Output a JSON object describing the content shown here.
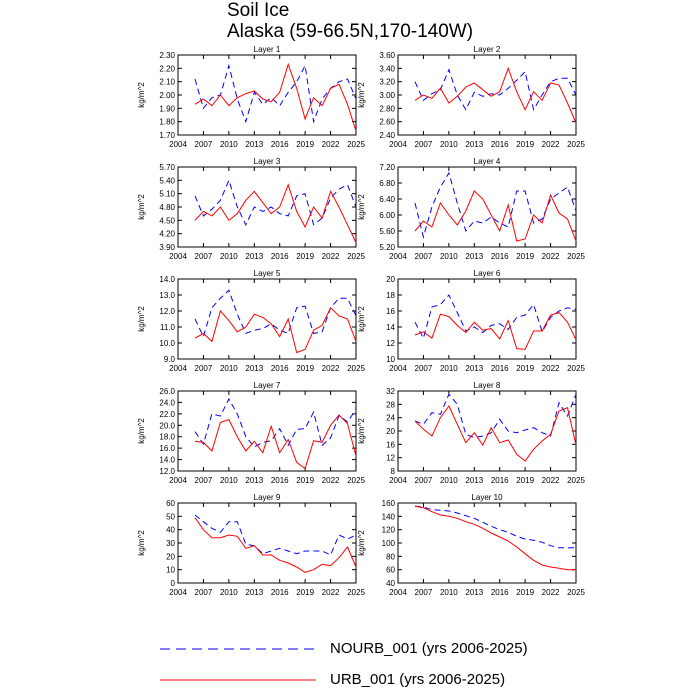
{
  "title_line1": "Soil Ice",
  "title_line2": "Alaska (59-66.5N,170-140W)",
  "ylabel": "kg/m^2",
  "colors": {
    "nourb": "#0000ff",
    "urb": "#ff0000"
  },
  "legend": {
    "nourb": "NOURB_001 (yrs 2006-2025)",
    "urb": "URB_001 (yrs 2006-2025)"
  },
  "chart_data": [
    {
      "type": "line",
      "title": "Layer 1",
      "xlim": [
        2004,
        2025
      ],
      "xticks": [
        2004,
        2007,
        2010,
        2013,
        2016,
        2019,
        2022,
        2025
      ],
      "xtick_labels": [
        "2004",
        "2007",
        "2010",
        "2013",
        "2016",
        "2019",
        "2022",
        "2025"
      ],
      "ylim": [
        1.7,
        2.3
      ],
      "yticks": [
        1.7,
        1.8,
        1.9,
        2.0,
        2.1,
        2.2,
        2.3
      ],
      "ytick_labels": [
        "1.70",
        "1.80",
        "1.90",
        "2.00",
        "2.10",
        "2.20",
        "2.30"
      ],
      "x": [
        2006,
        2007,
        2008,
        2009,
        2010,
        2011,
        2012,
        2013,
        2014,
        2015,
        2016,
        2017,
        2018,
        2019,
        2020,
        2021,
        2022,
        2023,
        2024,
        2025
      ],
      "series": [
        {
          "name": "NOURB_001",
          "values": [
            2.12,
            1.9,
            1.98,
            2.0,
            2.22,
            1.97,
            1.8,
            2.02,
            1.93,
            1.98,
            1.92,
            2.02,
            2.1,
            2.22,
            1.8,
            1.97,
            2.05,
            2.1,
            2.12,
            1.97
          ]
        },
        {
          "name": "URB_001",
          "values": [
            1.93,
            1.97,
            1.92,
            2.0,
            1.92,
            1.98,
            2.01,
            2.03,
            1.97,
            1.95,
            2.02,
            2.23,
            2.05,
            1.82,
            1.98,
            1.92,
            2.05,
            2.08,
            1.93,
            1.73
          ]
        }
      ]
    },
    {
      "type": "line",
      "title": "Layer 2",
      "xlim": [
        2004,
        2025
      ],
      "xticks": [
        2004,
        2007,
        2010,
        2013,
        2016,
        2019,
        2022,
        2025
      ],
      "xtick_labels": [
        "2004",
        "2007",
        "2010",
        "2013",
        "2016",
        "2019",
        "2022",
        "2025"
      ],
      "ylim": [
        2.4,
        3.6
      ],
      "yticks": [
        2.4,
        2.6,
        2.8,
        3.0,
        3.2,
        3.4,
        3.6
      ],
      "ytick_labels": [
        "2.40",
        "2.60",
        "2.80",
        "3.00",
        "3.20",
        "3.40",
        "3.60"
      ],
      "x": [
        2006,
        2007,
        2008,
        2009,
        2010,
        2011,
        2012,
        2013,
        2014,
        2015,
        2016,
        2017,
        2018,
        2019,
        2020,
        2021,
        2022,
        2023,
        2024,
        2025
      ],
      "series": [
        {
          "name": "NOURB_001",
          "values": [
            3.2,
            2.92,
            3.02,
            3.08,
            3.38,
            3.0,
            2.78,
            3.04,
            2.98,
            3.02,
            3.0,
            3.1,
            3.22,
            3.35,
            2.78,
            3.0,
            3.2,
            3.25,
            3.25,
            3.0
          ]
        },
        {
          "name": "URB_001",
          "values": [
            2.92,
            3.0,
            2.95,
            3.1,
            2.88,
            2.98,
            3.12,
            3.18,
            3.08,
            2.98,
            3.05,
            3.4,
            3.05,
            2.78,
            3.05,
            2.92,
            3.18,
            3.15,
            2.88,
            2.58
          ]
        }
      ]
    },
    {
      "type": "line",
      "title": "Layer 3",
      "xlim": [
        2004,
        2025
      ],
      "xticks": [
        2004,
        2007,
        2010,
        2013,
        2016,
        2019,
        2022,
        2025
      ],
      "xtick_labels": [
        "2004",
        "2007",
        "2010",
        "2013",
        "2016",
        "2019",
        "2022",
        "2025"
      ],
      "ylim": [
        3.9,
        5.7
      ],
      "yticks": [
        3.9,
        4.2,
        4.5,
        4.8,
        5.1,
        5.4,
        5.7
      ],
      "ytick_labels": [
        "3.90",
        "4.20",
        "4.50",
        "4.80",
        "5.10",
        "5.40",
        "5.70"
      ],
      "x": [
        2006,
        2007,
        2008,
        2009,
        2010,
        2011,
        2012,
        2013,
        2014,
        2015,
        2016,
        2017,
        2018,
        2019,
        2020,
        2021,
        2022,
        2023,
        2024,
        2025
      ],
      "series": [
        {
          "name": "NOURB_001",
          "values": [
            5.05,
            4.6,
            4.75,
            4.95,
            5.4,
            4.8,
            4.4,
            4.8,
            4.7,
            4.8,
            4.65,
            4.6,
            5.05,
            5.1,
            4.4,
            4.55,
            5.0,
            5.2,
            5.3,
            4.8
          ]
        },
        {
          "name": "URB_001",
          "values": [
            4.5,
            4.7,
            4.6,
            4.8,
            4.5,
            4.65,
            4.95,
            5.15,
            4.9,
            4.65,
            4.8,
            5.3,
            4.7,
            4.35,
            4.8,
            4.55,
            5.15,
            4.8,
            4.4,
            4.0
          ]
        }
      ]
    },
    {
      "type": "line",
      "title": "Layer 4",
      "xlim": [
        2004,
        2025
      ],
      "xticks": [
        2004,
        2007,
        2010,
        2013,
        2016,
        2019,
        2022,
        2025
      ],
      "xtick_labels": [
        "2004",
        "2007",
        "2010",
        "2013",
        "2016",
        "2019",
        "2022",
        "2025"
      ],
      "ylim": [
        5.2,
        7.2
      ],
      "yticks": [
        5.2,
        5.6,
        6.0,
        6.4,
        6.8,
        7.2
      ],
      "ytick_labels": [
        "5.20",
        "5.60",
        "6.00",
        "6.40",
        "6.80",
        "7.20"
      ],
      "x": [
        2006,
        2007,
        2008,
        2009,
        2010,
        2011,
        2012,
        2013,
        2014,
        2015,
        2016,
        2017,
        2018,
        2019,
        2020,
        2021,
        2022,
        2023,
        2024,
        2025
      ],
      "series": [
        {
          "name": "NOURB_001",
          "values": [
            6.3,
            5.45,
            6.2,
            6.7,
            7.05,
            6.3,
            5.6,
            5.85,
            5.8,
            5.95,
            5.8,
            5.7,
            6.6,
            6.6,
            5.8,
            5.9,
            6.4,
            6.55,
            6.7,
            6.1
          ]
        },
        {
          "name": "URB_001",
          "values": [
            5.6,
            5.85,
            5.7,
            6.3,
            6.0,
            5.75,
            6.1,
            6.6,
            6.4,
            6.0,
            5.6,
            6.25,
            5.35,
            5.4,
            6.0,
            5.8,
            6.5,
            6.05,
            5.9,
            5.35
          ]
        }
      ]
    },
    {
      "type": "line",
      "title": "Layer 5",
      "xlim": [
        2004,
        2025
      ],
      "xticks": [
        2004,
        2007,
        2010,
        2013,
        2016,
        2019,
        2022,
        2025
      ],
      "xtick_labels": [
        "2004",
        "2007",
        "2010",
        "2013",
        "2016",
        "2019",
        "2022",
        "2025"
      ],
      "ylim": [
        9.0,
        14.0
      ],
      "yticks": [
        9,
        10,
        11,
        12,
        13,
        14
      ],
      "ytick_labels": [
        "9.0",
        "10.0",
        "11.0",
        "12.0",
        "13.0",
        "14.0"
      ],
      "x": [
        2006,
        2007,
        2008,
        2009,
        2010,
        2011,
        2012,
        2013,
        2014,
        2015,
        2016,
        2017,
        2018,
        2019,
        2020,
        2021,
        2022,
        2023,
        2024,
        2025
      ],
      "series": [
        {
          "name": "NOURB_001",
          "values": [
            11.5,
            10.4,
            12.2,
            12.8,
            13.3,
            11.8,
            10.6,
            10.8,
            10.9,
            11.2,
            10.8,
            10.6,
            12.2,
            12.3,
            10.6,
            10.7,
            12.2,
            12.8,
            12.8,
            11.7
          ]
        },
        {
          "name": "URB_001",
          "values": [
            10.3,
            10.6,
            10.1,
            12.0,
            11.4,
            10.7,
            11.0,
            11.8,
            11.6,
            11.2,
            10.4,
            11.5,
            9.4,
            9.6,
            10.8,
            11.1,
            12.2,
            11.7,
            11.5,
            10.1
          ]
        }
      ]
    },
    {
      "type": "line",
      "title": "Layer 6",
      "xlim": [
        2004,
        2025
      ],
      "xticks": [
        2004,
        2007,
        2010,
        2013,
        2016,
        2019,
        2022,
        2025
      ],
      "xtick_labels": [
        "2004",
        "2007",
        "2010",
        "2013",
        "2016",
        "2019",
        "2022",
        "2025"
      ],
      "ylim": [
        10,
        20
      ],
      "yticks": [
        10,
        12,
        14,
        16,
        18,
        20
      ],
      "ytick_labels": [
        "10",
        "12",
        "14",
        "16",
        "18",
        "20"
      ],
      "x": [
        2006,
        2007,
        2008,
        2009,
        2010,
        2011,
        2012,
        2013,
        2014,
        2015,
        2016,
        2017,
        2018,
        2019,
        2020,
        2021,
        2022,
        2023,
        2024,
        2025
      ],
      "series": [
        {
          "name": "NOURB_001",
          "values": [
            14.6,
            12.6,
            16.5,
            16.8,
            18.0,
            15.8,
            13.5,
            14.0,
            13.3,
            14.2,
            14.4,
            13.7,
            15.2,
            15.5,
            16.8,
            13.4,
            15.2,
            16.0,
            16.4,
            16.2
          ]
        },
        {
          "name": "URB_001",
          "values": [
            13.0,
            13.4,
            12.6,
            15.6,
            15.3,
            14.2,
            13.3,
            14.6,
            13.6,
            13.8,
            12.5,
            14.8,
            11.3,
            11.2,
            13.5,
            13.5,
            15.5,
            15.8,
            14.6,
            12.4
          ]
        }
      ]
    },
    {
      "type": "line",
      "title": "Layer 7",
      "xlim": [
        2004,
        2025
      ],
      "xticks": [
        2004,
        2007,
        2010,
        2013,
        2016,
        2019,
        2022,
        2025
      ],
      "xtick_labels": [
        "2004",
        "2007",
        "2010",
        "2013",
        "2016",
        "2019",
        "2022",
        "2025"
      ],
      "ylim": [
        12,
        26
      ],
      "yticks": [
        12,
        14,
        16,
        18,
        20,
        22,
        24,
        26
      ],
      "ytick_labels": [
        "12.0",
        "14.0",
        "16.0",
        "18.0",
        "20.0",
        "22.0",
        "24.0",
        "26.0"
      ],
      "x": [
        2006,
        2007,
        2008,
        2009,
        2010,
        2011,
        2012,
        2013,
        2014,
        2015,
        2016,
        2017,
        2018,
        2019,
        2020,
        2021,
        2022,
        2023,
        2024,
        2025
      ],
      "series": [
        {
          "name": "NOURB_001",
          "values": [
            18.9,
            16.7,
            22.0,
            21.6,
            24.6,
            22.0,
            18.0,
            16.2,
            17.0,
            17.3,
            19.4,
            16.5,
            19.3,
            19.4,
            22.3,
            16.5,
            17.8,
            21.7,
            20.6,
            22.8
          ]
        },
        {
          "name": "URB_001",
          "values": [
            17.2,
            17.0,
            15.5,
            20.5,
            21.0,
            18.0,
            15.5,
            17.2,
            15.2,
            19.8,
            15.2,
            17.5,
            13.5,
            12.4,
            17.3,
            17.0,
            20.0,
            21.8,
            20.3,
            14.6
          ]
        }
      ]
    },
    {
      "type": "line",
      "title": "Layer 8",
      "xlim": [
        2004,
        2025
      ],
      "xticks": [
        2004,
        2007,
        2010,
        2013,
        2016,
        2019,
        2022,
        2025
      ],
      "xtick_labels": [
        "2004",
        "2007",
        "2010",
        "2013",
        "2016",
        "2019",
        "2022",
        "2025"
      ],
      "ylim": [
        8,
        32
      ],
      "yticks": [
        8,
        12,
        16,
        20,
        24,
        28,
        32
      ],
      "ytick_labels": [
        "8",
        "12",
        "16",
        "20",
        "24",
        "28",
        "32"
      ],
      "x": [
        2006,
        2007,
        2008,
        2009,
        2010,
        2011,
        2012,
        2013,
        2014,
        2015,
        2016,
        2017,
        2018,
        2019,
        2020,
        2021,
        2022,
        2023,
        2024,
        2025
      ],
      "series": [
        {
          "name": "NOURB_001",
          "values": [
            23.0,
            22.0,
            25.5,
            25.0,
            31.0,
            28.0,
            19.0,
            18.0,
            18.5,
            19.5,
            23.5,
            20.0,
            19.5,
            20.3,
            21.0,
            19.5,
            18.5,
            28.5,
            24.5,
            31.0
          ]
        },
        {
          "name": "URB_001",
          "values": [
            23.0,
            20.5,
            18.5,
            24.0,
            27.5,
            22.0,
            16.5,
            19.5,
            15.8,
            21.0,
            16.5,
            17.3,
            13.0,
            11.0,
            14.5,
            17.0,
            19.0,
            26.0,
            27.0,
            15.8
          ]
        }
      ]
    },
    {
      "type": "line",
      "title": "Layer 9",
      "xlim": [
        2004,
        2025
      ],
      "xticks": [
        2004,
        2007,
        2010,
        2013,
        2016,
        2019,
        2022,
        2025
      ],
      "xtick_labels": [
        "2004",
        "2007",
        "2010",
        "2013",
        "2016",
        "2019",
        "2022",
        "2025"
      ],
      "ylim": [
        0,
        60
      ],
      "yticks": [
        0,
        10,
        20,
        30,
        40,
        50,
        60
      ],
      "ytick_labels": [
        "0",
        "10",
        "20",
        "30",
        "40",
        "50",
        "60"
      ],
      "x": [
        2006,
        2007,
        2008,
        2009,
        2010,
        2011,
        2012,
        2013,
        2014,
        2015,
        2016,
        2017,
        2018,
        2019,
        2020,
        2021,
        2022,
        2023,
        2024,
        2025
      ],
      "series": [
        {
          "name": "NOURB_001",
          "values": [
            51.0,
            46.0,
            41.0,
            38.0,
            46.0,
            46.0,
            29.0,
            28.0,
            22.0,
            24.0,
            26.0,
            24.0,
            22.0,
            24.0,
            24.0,
            24.0,
            21.0,
            36.0,
            33.0,
            36.0
          ]
        },
        {
          "name": "URB_001",
          "values": [
            49.0,
            40.0,
            34.0,
            34.0,
            36.0,
            35.0,
            26.0,
            28.0,
            21.0,
            21.0,
            17.0,
            15.0,
            12.0,
            8.0,
            10.0,
            14.0,
            13.0,
            19.0,
            27.0,
            12.0
          ]
        }
      ]
    },
    {
      "type": "line",
      "title": "Layer 10",
      "xlim": [
        2004,
        2025
      ],
      "xticks": [
        2004,
        2007,
        2010,
        2013,
        2016,
        2019,
        2022,
        2025
      ],
      "xtick_labels": [
        "2004",
        "2007",
        "2010",
        "2013",
        "2016",
        "2019",
        "2022",
        "2025"
      ],
      "ylim": [
        40,
        160
      ],
      "yticks": [
        40,
        60,
        80,
        100,
        120,
        140,
        160
      ],
      "ytick_labels": [
        "40",
        "60",
        "80",
        "100",
        "120",
        "140",
        "160"
      ],
      "x": [
        2006,
        2007,
        2008,
        2009,
        2010,
        2011,
        2012,
        2013,
        2014,
        2015,
        2016,
        2017,
        2018,
        2019,
        2020,
        2021,
        2022,
        2023,
        2024,
        2025
      ],
      "series": [
        {
          "name": "NOURB_001",
          "values": [
            155.0,
            154.0,
            150.0,
            149.0,
            148.0,
            145.0,
            141.0,
            137.0,
            131.0,
            125.0,
            120.0,
            116.0,
            110.0,
            106.0,
            104.0,
            101.0,
            96.0,
            93.0,
            93.0,
            93.0
          ]
        },
        {
          "name": "URB_001",
          "values": [
            155.0,
            153.0,
            147.0,
            142.0,
            140.0,
            137.0,
            132.0,
            128.0,
            122.0,
            115.0,
            109.0,
            103.0,
            94.0,
            84.0,
            74.0,
            67.0,
            64.0,
            62.0,
            60.0,
            60.0
          ]
        }
      ]
    }
  ]
}
